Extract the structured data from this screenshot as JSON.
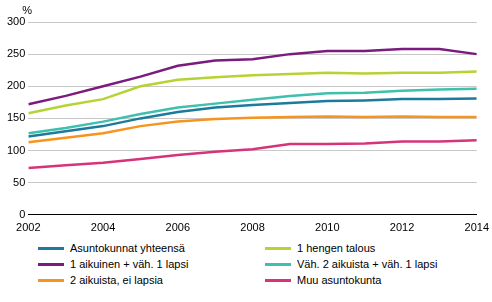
{
  "chart_data": {
    "type": "line",
    "y_label": "%",
    "x": [
      2002,
      2003,
      2004,
      2005,
      2006,
      2007,
      2008,
      2009,
      2010,
      2011,
      2012,
      2013,
      2014
    ],
    "xlim": [
      2002,
      2014
    ],
    "xticks": [
      2002,
      2004,
      2006,
      2008,
      2010,
      2012,
      2014
    ],
    "ylim": [
      0,
      300
    ],
    "yticks": [
      0,
      50,
      100,
      150,
      200,
      250,
      300
    ],
    "grid": true,
    "legend": "bottom",
    "series": [
      {
        "name": "Asuntokunnat yhteensä",
        "color": "#1d7a9a",
        "values": [
          122,
          130,
          138,
          150,
          160,
          167,
          171,
          174,
          177,
          178,
          180,
          180,
          181
        ]
      },
      {
        "name": "1 hengen talous",
        "color": "#b5d334",
        "values": [
          158,
          170,
          180,
          200,
          210,
          214,
          217,
          219,
          221,
          220,
          221,
          221,
          223
        ]
      },
      {
        "name": "1 aikuinen + väh. 1 lapsi",
        "color": "#7b1b7e",
        "values": [
          172,
          185,
          200,
          215,
          232,
          240,
          242,
          250,
          255,
          255,
          258,
          258,
          250
        ]
      },
      {
        "name": "Väh. 2 aikuista + väh. 1 lapsi",
        "color": "#3fbfad",
        "values": [
          127,
          135,
          145,
          157,
          167,
          173,
          179,
          185,
          189,
          190,
          193,
          195,
          196
        ]
      },
      {
        "name": "2 aikuista, ei lapsia",
        "color": "#f7941d",
        "values": [
          113,
          120,
          127,
          138,
          145,
          149,
          151,
          152,
          153,
          152,
          153,
          152,
          152
        ]
      },
      {
        "name": "Muu asuntokunta",
        "color": "#d6337a",
        "values": [
          73,
          77,
          81,
          87,
          93,
          98,
          102,
          110,
          110,
          111,
          114,
          114,
          116
        ]
      }
    ]
  }
}
